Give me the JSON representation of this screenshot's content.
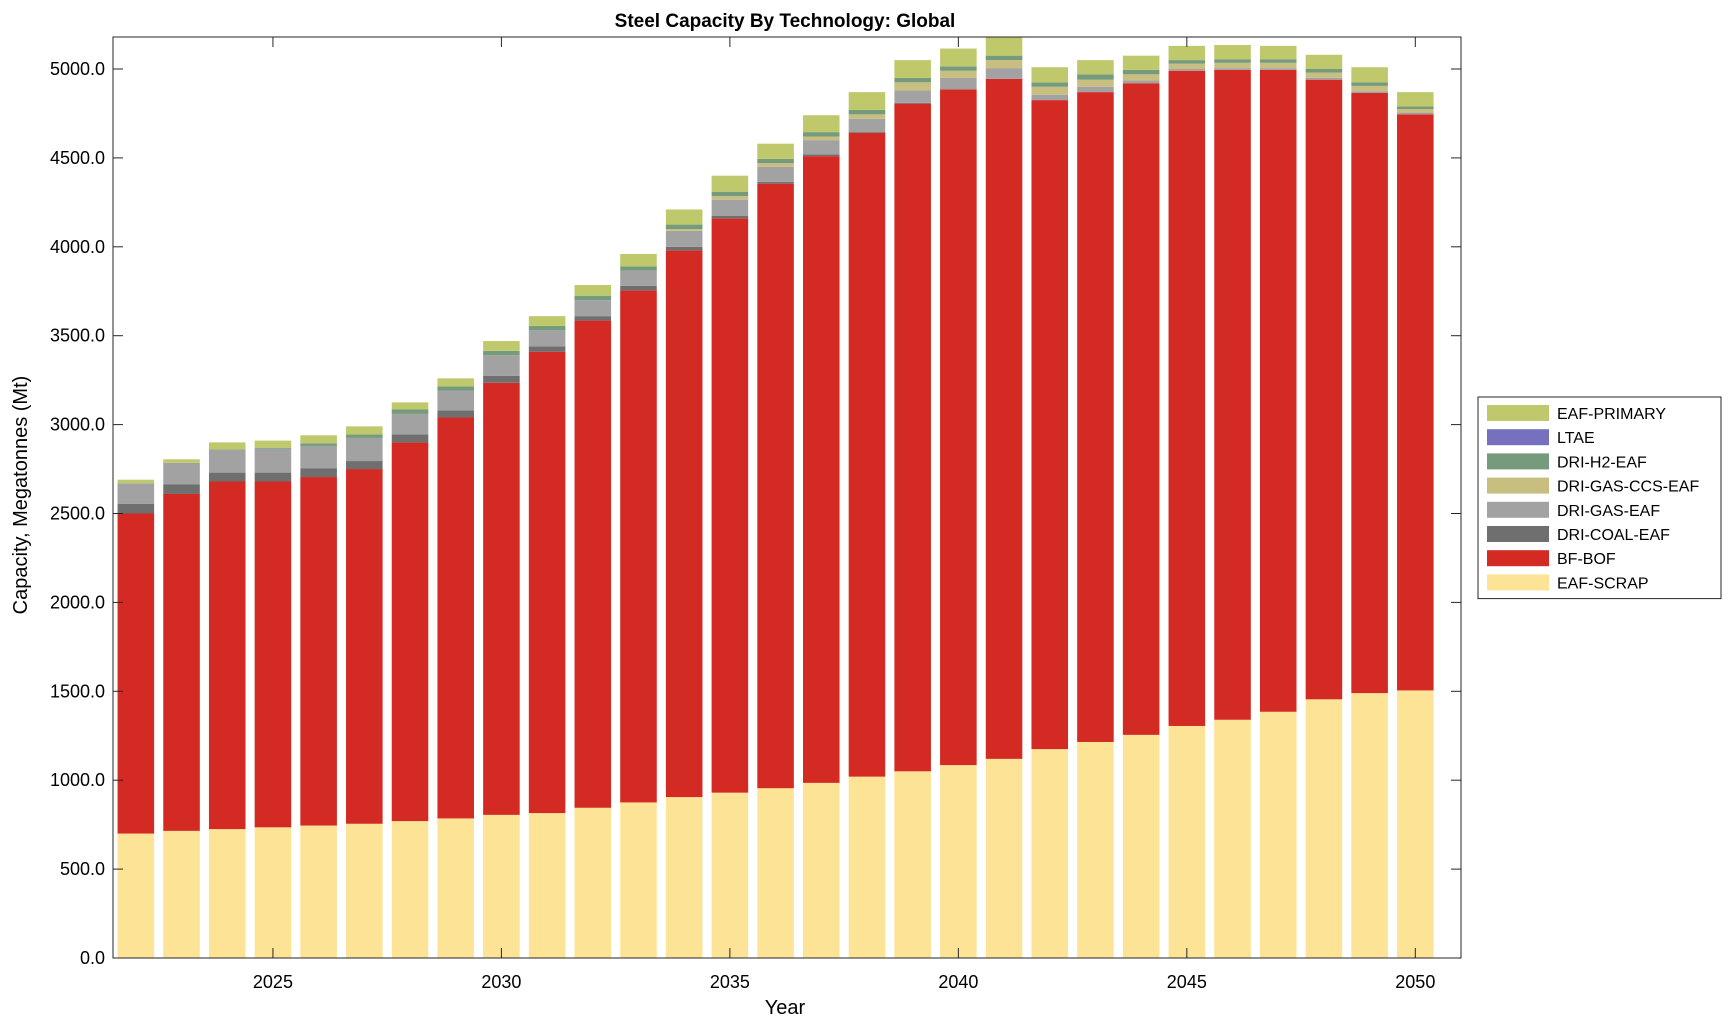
{
  "chart_data": {
    "type": "bar",
    "stacked": true,
    "title": "Steel Capacity By Technology: Global",
    "xlabel": "Year",
    "ylabel": "Capacity, Megatonnes (Mt)",
    "xlim": [
      2021.5,
      2051
    ],
    "ylim": [
      0,
      5180
    ],
    "xticks": [
      2025,
      2030,
      2035,
      2040,
      2045,
      2050
    ],
    "xtick_labels": [
      "2025",
      "2030",
      "2035",
      "2040",
      "2045",
      "2050"
    ],
    "yticks": [
      0,
      500,
      1000,
      1500,
      2000,
      2500,
      3000,
      3500,
      4000,
      4500,
      5000
    ],
    "ytick_labels": [
      "0.0",
      "500.0",
      "1000.0",
      "1500.0",
      "2000.0",
      "2500.0",
      "3000.0",
      "3500.0",
      "4000.0",
      "4500.0",
      "5000.0"
    ],
    "grid": false,
    "legend_position": "outside-right",
    "categories": [
      2022,
      2023,
      2024,
      2025,
      2026,
      2027,
      2028,
      2029,
      2030,
      2031,
      2032,
      2033,
      2034,
      2035,
      2036,
      2037,
      2038,
      2039,
      2040,
      2041,
      2042,
      2043,
      2044,
      2045,
      2046,
      2047,
      2048,
      2049,
      2050
    ],
    "series": [
      {
        "name": "EAF-SCRAP",
        "color": "#fde396",
        "values": [
          700,
          715,
          725,
          735,
          745,
          755,
          770,
          785,
          805,
          815,
          845,
          875,
          905,
          930,
          955,
          985,
          1020,
          1050,
          1085,
          1120,
          1175,
          1215,
          1255,
          1305,
          1340,
          1385,
          1455,
          1490,
          1505
        ]
      },
      {
        "name": "BF-BOF",
        "color": "#d32a23",
        "values": [
          1800,
          1895,
          1955,
          1945,
          1960,
          1995,
          2130,
          2255,
          2430,
          2595,
          2740,
          2880,
          3075,
          3230,
          3400,
          3525,
          3620,
          3755,
          3800,
          3825,
          3650,
          3655,
          3665,
          3685,
          3655,
          3610,
          3485,
          3375,
          3240
        ]
      },
      {
        "name": "DRI-COAL-EAF",
        "color": "#6f6f6f",
        "values": [
          55,
          55,
          50,
          50,
          50,
          45,
          45,
          40,
          40,
          30,
          25,
          25,
          20,
          15,
          10,
          10,
          5,
          5,
          0,
          0,
          0,
          0,
          0,
          0,
          0,
          0,
          0,
          0,
          0
        ]
      },
      {
        "name": "DRI-GAS-EAF",
        "color": "#a2a2a2",
        "values": [
          115,
          120,
          130,
          135,
          125,
          130,
          115,
          110,
          115,
          90,
          90,
          85,
          90,
          90,
          85,
          80,
          75,
          70,
          65,
          60,
          30,
          30,
          15,
          10,
          10,
          10,
          10,
          10,
          10
        ]
      },
      {
        "name": "DRI-GAS-CCS-EAF",
        "color": "#c8be80",
        "values": [
          0,
          0,
          0,
          0,
          0,
          0,
          0,
          0,
          0,
          0,
          0,
          0,
          10,
          20,
          20,
          20,
          25,
          45,
          40,
          45,
          45,
          40,
          35,
          30,
          30,
          30,
          30,
          30,
          20
        ]
      },
      {
        "name": "DRI-H2-EAF",
        "color": "#759b7c",
        "values": [
          0,
          0,
          0,
          5,
          15,
          20,
          25,
          25,
          25,
          25,
          25,
          25,
          25,
          25,
          25,
          25,
          25,
          25,
          25,
          25,
          25,
          30,
          25,
          20,
          20,
          20,
          20,
          20,
          15
        ]
      },
      {
        "name": "LTAE",
        "color": "#7670bf",
        "values": [
          0,
          0,
          0,
          0,
          0,
          0,
          0,
          0,
          0,
          0,
          0,
          0,
          0,
          0,
          0,
          0,
          0,
          0,
          0,
          0,
          0,
          0,
          0,
          0,
          0,
          0,
          0,
          0,
          0
        ]
      },
      {
        "name": "EAF-PRIMARY",
        "color": "#bfc96b",
        "values": [
          20,
          20,
          40,
          40,
          45,
          45,
          40,
          45,
          55,
          55,
          60,
          70,
          85,
          90,
          85,
          95,
          100,
          100,
          100,
          105,
          85,
          80,
          80,
          80,
          80,
          75,
          80,
          85,
          80
        ]
      }
    ],
    "legend_order": [
      "EAF-PRIMARY",
      "LTAE",
      "DRI-H2-EAF",
      "DRI-GAS-CCS-EAF",
      "DRI-GAS-EAF",
      "DRI-COAL-EAF",
      "BF-BOF",
      "EAF-SCRAP"
    ]
  }
}
